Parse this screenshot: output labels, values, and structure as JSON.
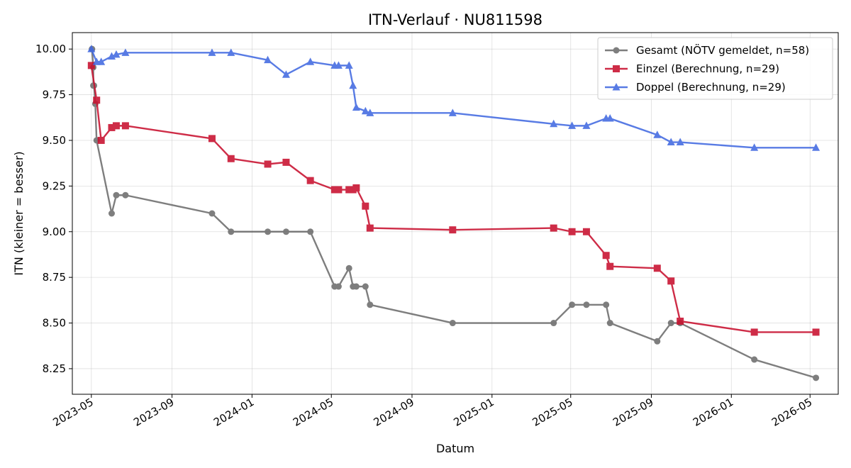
{
  "chart_data": {
    "type": "line",
    "title": "ITN-Verlauf · NU811598",
    "xlabel": "Datum",
    "ylabel": "ITN  (kleiner = besser)",
    "x_type": "date",
    "xlim": [
      "2023-04-02",
      "2026-06-13"
    ],
    "ylim": [
      8.11,
      10.09
    ],
    "grid": true,
    "legend_position": "top-right",
    "x_ticks": [
      "2023-05",
      "2023-09",
      "2024-01",
      "2024-05",
      "2024-09",
      "2025-01",
      "2025-05",
      "2025-09",
      "2026-01",
      "2026-05"
    ],
    "y_ticks": [
      "8.25",
      "8.50",
      "8.75",
      "9.00",
      "9.25",
      "9.50",
      "9.75",
      "10.00"
    ],
    "series": [
      {
        "name": "Gesamt (NÖTV gemeldet, n=58)",
        "color": "#4d4d4d",
        "marker": "circle",
        "x": [
          "2023-05-02",
          "2023-05-02",
          "2023-05-04",
          "2023-05-04",
          "2023-05-05",
          "2023-05-07",
          "2023-05-09",
          "2023-06-01",
          "2023-06-08",
          "2023-06-22",
          "2023-11-01",
          "2023-11-30",
          "2024-01-25",
          "2024-02-22",
          "2024-03-30",
          "2024-05-06",
          "2024-05-12",
          "2024-05-28",
          "2024-06-03",
          "2024-06-08",
          "2024-06-22",
          "2024-06-29",
          "2024-11-02",
          "2025-04-05",
          "2025-05-03",
          "2025-05-25",
          "2025-06-24",
          "2025-06-30",
          "2025-09-10",
          "2025-10-01",
          "2025-10-15",
          "2026-02-05",
          "2026-05-10"
        ],
        "y": [
          10.0,
          10.0,
          9.9,
          9.8,
          9.8,
          9.7,
          9.5,
          9.1,
          9.2,
          9.2,
          9.1,
          9.0,
          9.0,
          9.0,
          9.0,
          8.7,
          8.7,
          8.8,
          8.7,
          8.7,
          8.7,
          8.6,
          8.5,
          8.5,
          8.6,
          8.6,
          8.6,
          8.5,
          8.4,
          8.5,
          8.5,
          8.3,
          8.2
        ]
      },
      {
        "name": "Einzel (Berechnung, n=29)",
        "color": "#c8102e",
        "marker": "square",
        "x": [
          "2023-05-01",
          "2023-05-09",
          "2023-05-16",
          "2023-06-01",
          "2023-06-08",
          "2023-06-22",
          "2023-11-01",
          "2023-11-30",
          "2024-01-25",
          "2024-02-22",
          "2024-03-30",
          "2024-05-06",
          "2024-05-12",
          "2024-05-28",
          "2024-06-03",
          "2024-06-08",
          "2024-06-22",
          "2024-06-29",
          "2024-11-02",
          "2025-04-05",
          "2025-05-03",
          "2025-05-25",
          "2025-06-24",
          "2025-06-30",
          "2025-09-10",
          "2025-10-01",
          "2025-10-15",
          "2026-02-05",
          "2026-05-10"
        ],
        "y": [
          9.91,
          9.72,
          9.5,
          9.57,
          9.58,
          9.58,
          9.51,
          9.4,
          9.37,
          9.38,
          9.28,
          9.23,
          9.23,
          9.23,
          9.23,
          9.24,
          9.14,
          9.02,
          9.01,
          9.02,
          9.0,
          9.0,
          8.87,
          8.81,
          8.8,
          8.73,
          8.51,
          8.45,
          8.45
        ]
      },
      {
        "name": "Doppel (Berechnung, n=29)",
        "color": "#4169e1",
        "marker": "triangle",
        "x": [
          "2023-05-01",
          "2023-05-09",
          "2023-05-16",
          "2023-06-01",
          "2023-06-08",
          "2023-06-22",
          "2023-11-01",
          "2023-11-30",
          "2024-01-25",
          "2024-02-22",
          "2024-03-30",
          "2024-05-06",
          "2024-05-12",
          "2024-05-28",
          "2024-06-03",
          "2024-06-08",
          "2024-06-22",
          "2024-06-29",
          "2024-11-02",
          "2025-04-05",
          "2025-05-03",
          "2025-05-25",
          "2025-06-24",
          "2025-06-30",
          "2025-09-10",
          "2025-10-01",
          "2025-10-15",
          "2026-02-05",
          "2026-05-10"
        ],
        "y": [
          10.0,
          9.93,
          9.93,
          9.96,
          9.97,
          9.98,
          9.98,
          9.98,
          9.94,
          9.86,
          9.93,
          9.91,
          9.91,
          9.91,
          9.8,
          9.68,
          9.66,
          9.65,
          9.65,
          9.59,
          9.58,
          9.58,
          9.62,
          9.62,
          9.53,
          9.49,
          9.49,
          9.46,
          9.46
        ]
      }
    ]
  }
}
